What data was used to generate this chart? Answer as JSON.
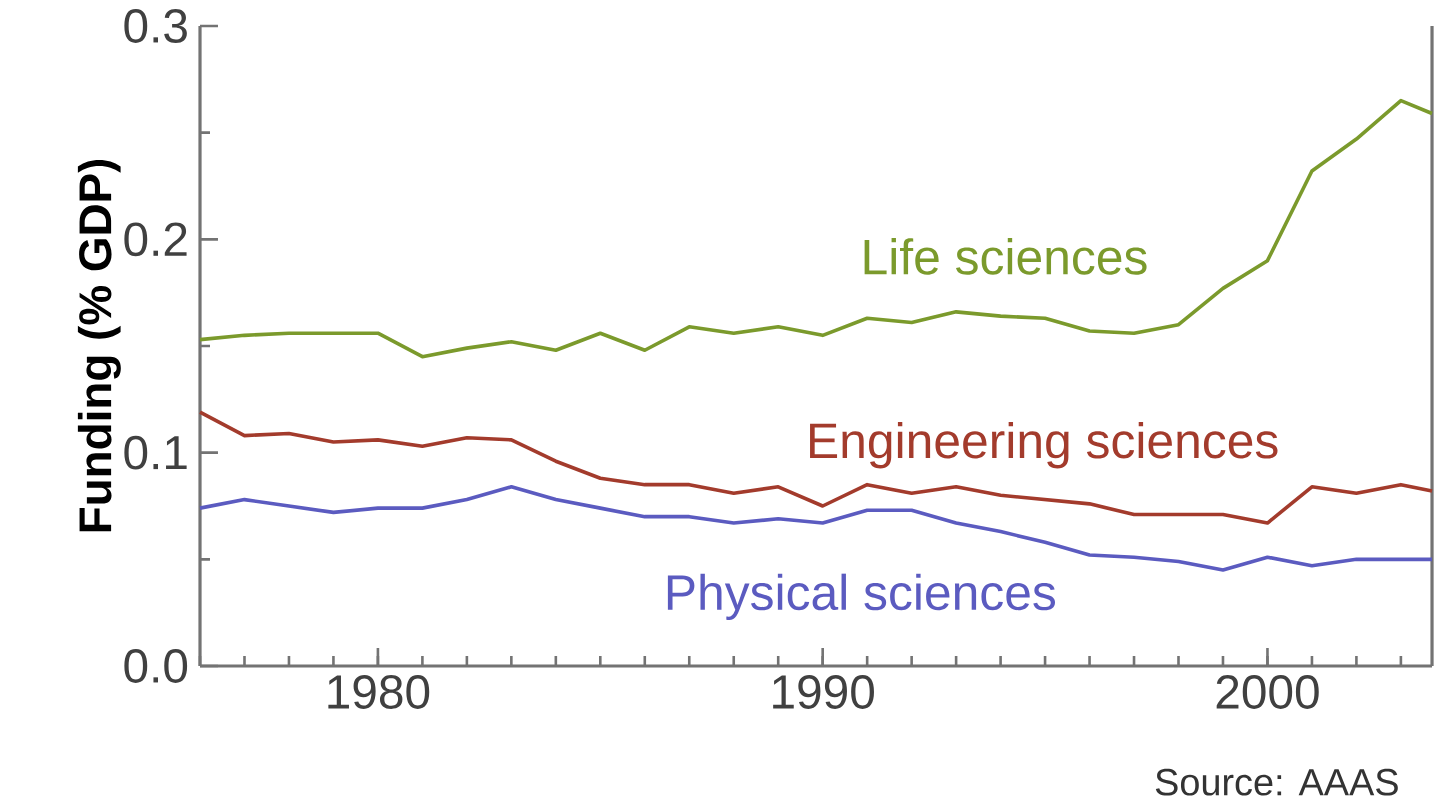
{
  "chart_data": {
    "type": "line",
    "ylabel": "Funding (% GDP)",
    "annotations": [
      "Source: AAAS"
    ],
    "x": [
      1976,
      1977,
      1978,
      1979,
      1980,
      1981,
      1982,
      1983,
      1984,
      1985,
      1986,
      1987,
      1988,
      1989,
      1990,
      1991,
      1992,
      1993,
      1994,
      1995,
      1996,
      1997,
      1998,
      1999,
      2000,
      2001,
      2002,
      2003,
      2003.7
    ],
    "series": [
      {
        "name": "Life sciences",
        "color": "#7b9a2c",
        "values": [
          0.153,
          0.155,
          0.156,
          0.156,
          0.156,
          0.145,
          0.149,
          0.152,
          0.148,
          0.156,
          0.148,
          0.159,
          0.156,
          0.159,
          0.155,
          0.163,
          0.161,
          0.166,
          0.164,
          0.163,
          0.157,
          0.156,
          0.16,
          0.177,
          0.19,
          0.232,
          0.247,
          0.265,
          0.259
        ]
      },
      {
        "name": "Engineering sciences",
        "color": "#a33b2c",
        "values": [
          0.119,
          0.108,
          0.109,
          0.105,
          0.106,
          0.103,
          0.107,
          0.106,
          0.096,
          0.088,
          0.085,
          0.085,
          0.081,
          0.084,
          0.075,
          0.085,
          0.081,
          0.084,
          0.08,
          0.078,
          0.076,
          0.071,
          0.071,
          0.071,
          0.067,
          0.084,
          0.081,
          0.085,
          0.082
        ]
      },
      {
        "name": "Physical sciences",
        "color": "#5b5bc0",
        "values": [
          0.074,
          0.078,
          0.075,
          0.072,
          0.074,
          0.074,
          0.078,
          0.084,
          0.078,
          0.074,
          0.07,
          0.07,
          0.067,
          0.069,
          0.067,
          0.073,
          0.073,
          0.067,
          0.063,
          0.058,
          0.052,
          0.051,
          0.049,
          0.045,
          0.051,
          0.047,
          0.05,
          0.05,
          0.05
        ]
      }
    ],
    "xlim": [
      1976,
      2003.7
    ],
    "ylim": [
      0,
      0.3
    ],
    "xticks": [
      1980,
      1990,
      2000
    ],
    "yticks": [
      {
        "value": 0,
        "label": "0.0"
      },
      0.1,
      0.2,
      0.3
    ]
  }
}
